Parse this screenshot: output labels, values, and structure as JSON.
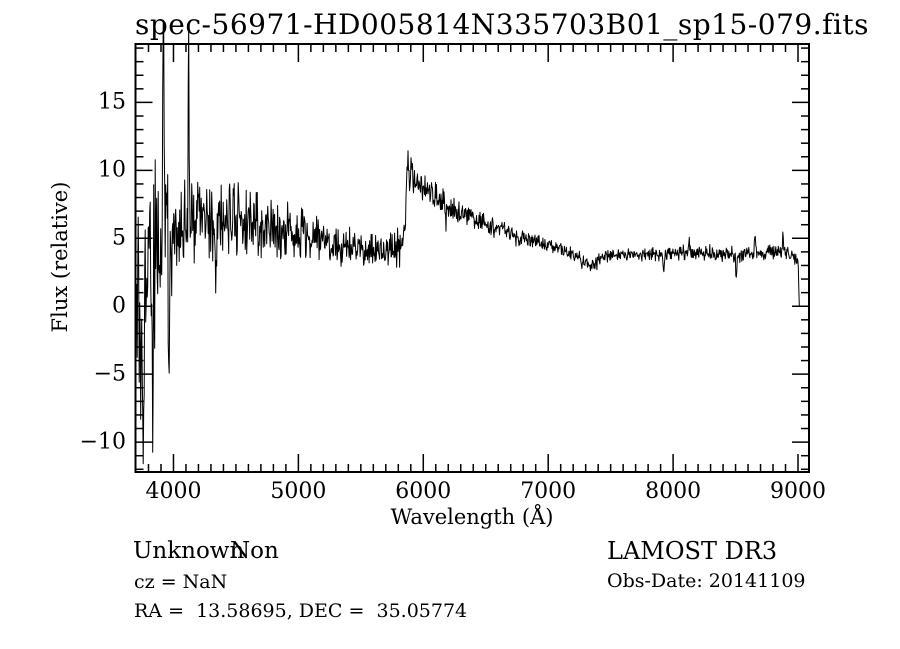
{
  "title": "spec-56971-HD005814N335703B01_sp15-079.fits",
  "footer": {
    "class_label": "Unknown",
    "subclass_label": "Non",
    "survey": "LAMOST DR3",
    "cz_line": "cz = NaN",
    "obsdate_line": "Obs-Date: 20141109",
    "radec_line": "RA =  13.58695, DEC =  35.05774"
  },
  "colors": {
    "background": "#ffffff",
    "foreground": "#000000",
    "line": "#000000"
  },
  "chart_data": {
    "type": "line",
    "title": "spec-56971-HD005814N335703B01_sp15-079.fits",
    "xlabel": "Wavelength (Å)",
    "ylabel": "Flux (relative)",
    "series_name": "flux",
    "grid": false,
    "legend": "none",
    "xlim": [
      3696,
      9088
    ],
    "ylim": [
      -12.2,
      19.3
    ],
    "x_ticks": [
      4000,
      5000,
      6000,
      7000,
      8000,
      9000
    ],
    "x_tick_labels": [
      "4000",
      "5000",
      "6000",
      "7000",
      "8000",
      "9000"
    ],
    "x_minor_step": 100,
    "y_ticks": [
      -10,
      -5,
      0,
      5,
      10,
      15
    ],
    "y_tick_labels": [
      "−10",
      "−5",
      "0",
      "5",
      "10",
      "15"
    ],
    "y_minor_step": 1,
    "sample_step_angstrom": 4,
    "noise_seed": 20141109,
    "continuum_points": [
      [
        3700,
        -0.5
      ],
      [
        3745,
        0.8
      ],
      [
        3800,
        2.4
      ],
      [
        3860,
        3.6
      ],
      [
        3920,
        4.6
      ],
      [
        3980,
        5.2
      ],
      [
        4060,
        5.9
      ],
      [
        4180,
        6.5
      ],
      [
        4350,
        6.5
      ],
      [
        4550,
        6.4
      ],
      [
        4750,
        6.0
      ],
      [
        4950,
        5.5
      ],
      [
        5150,
        5.0
      ],
      [
        5350,
        4.6
      ],
      [
        5550,
        4.25
      ],
      [
        5750,
        4.2
      ],
      [
        5830,
        4.5
      ],
      [
        5858,
        6.0
      ],
      [
        5872,
        11.5
      ],
      [
        5886,
        9.9
      ],
      [
        5915,
        9.2
      ],
      [
        5990,
        8.9
      ],
      [
        6060,
        8.4
      ],
      [
        6150,
        7.7
      ],
      [
        6250,
        7.1
      ],
      [
        6350,
        6.6
      ],
      [
        6450,
        6.3
      ],
      [
        6550,
        6.0
      ],
      [
        6650,
        5.6
      ],
      [
        6750,
        5.1
      ],
      [
        6850,
        4.85
      ],
      [
        6950,
        4.6
      ],
      [
        7050,
        4.35
      ],
      [
        7150,
        4.0
      ],
      [
        7250,
        3.5
      ],
      [
        7340,
        2.75
      ],
      [
        7420,
        3.6
      ],
      [
        7550,
        3.8
      ],
      [
        7700,
        3.85
      ],
      [
        7900,
        3.85
      ],
      [
        8100,
        3.95
      ],
      [
        8300,
        3.9
      ],
      [
        8500,
        3.85
      ],
      [
        8700,
        3.95
      ],
      [
        8850,
        4.0
      ],
      [
        8950,
        3.9
      ],
      [
        8990,
        3.4
      ],
      [
        9002,
        2.8
      ],
      [
        9010,
        0.1
      ]
    ],
    "noise_amplitude_points": [
      [
        3700,
        9.5
      ],
      [
        3780,
        8.0
      ],
      [
        3850,
        6.5
      ],
      [
        3930,
        5.0
      ],
      [
        4000,
        3.2
      ],
      [
        4200,
        2.5
      ],
      [
        4500,
        2.3
      ],
      [
        4800,
        1.8
      ],
      [
        5100,
        1.5
      ],
      [
        5400,
        1.2
      ],
      [
        5700,
        1.0
      ],
      [
        5860,
        1.3
      ],
      [
        5950,
        0.9
      ],
      [
        6200,
        0.75
      ],
      [
        6500,
        0.6
      ],
      [
        6900,
        0.5
      ],
      [
        7300,
        0.45
      ],
      [
        7700,
        0.4
      ],
      [
        8100,
        0.45
      ],
      [
        8500,
        0.5
      ],
      [
        8800,
        0.55
      ],
      [
        9010,
        0.4
      ]
    ],
    "spikes": [
      {
        "wavelength": 3920,
        "delta": 27.0,
        "width": 4
      },
      {
        "wavelength": 4122,
        "delta": 11.5,
        "width": 4
      },
      {
        "wavelength": 3757,
        "delta": -13.0,
        "width": 5
      },
      {
        "wavelength": 3835,
        "delta": -11.0,
        "width": 4
      },
      {
        "wavelength": 3965,
        "delta": -14.0,
        "width": 4
      },
      {
        "wavelength": 4340,
        "delta": -3.0,
        "width": 5
      },
      {
        "wavelength": 4862,
        "delta": -2.0,
        "width": 4
      },
      {
        "wavelength": 6180,
        "delta": -1.8,
        "width": 4
      },
      {
        "wavelength": 6565,
        "delta": -1.2,
        "width": 4
      },
      {
        "wavelength": 7925,
        "delta": -1.6,
        "width": 4
      },
      {
        "wavelength": 8130,
        "delta": 1.0,
        "width": 4
      },
      {
        "wavelength": 8505,
        "delta": -2.4,
        "width": 4
      },
      {
        "wavelength": 8655,
        "delta": 1.6,
        "width": 4
      },
      {
        "wavelength": 8880,
        "delta": 1.2,
        "width": 5
      }
    ],
    "value_clip": [
      -11.6,
      20.8
    ]
  }
}
